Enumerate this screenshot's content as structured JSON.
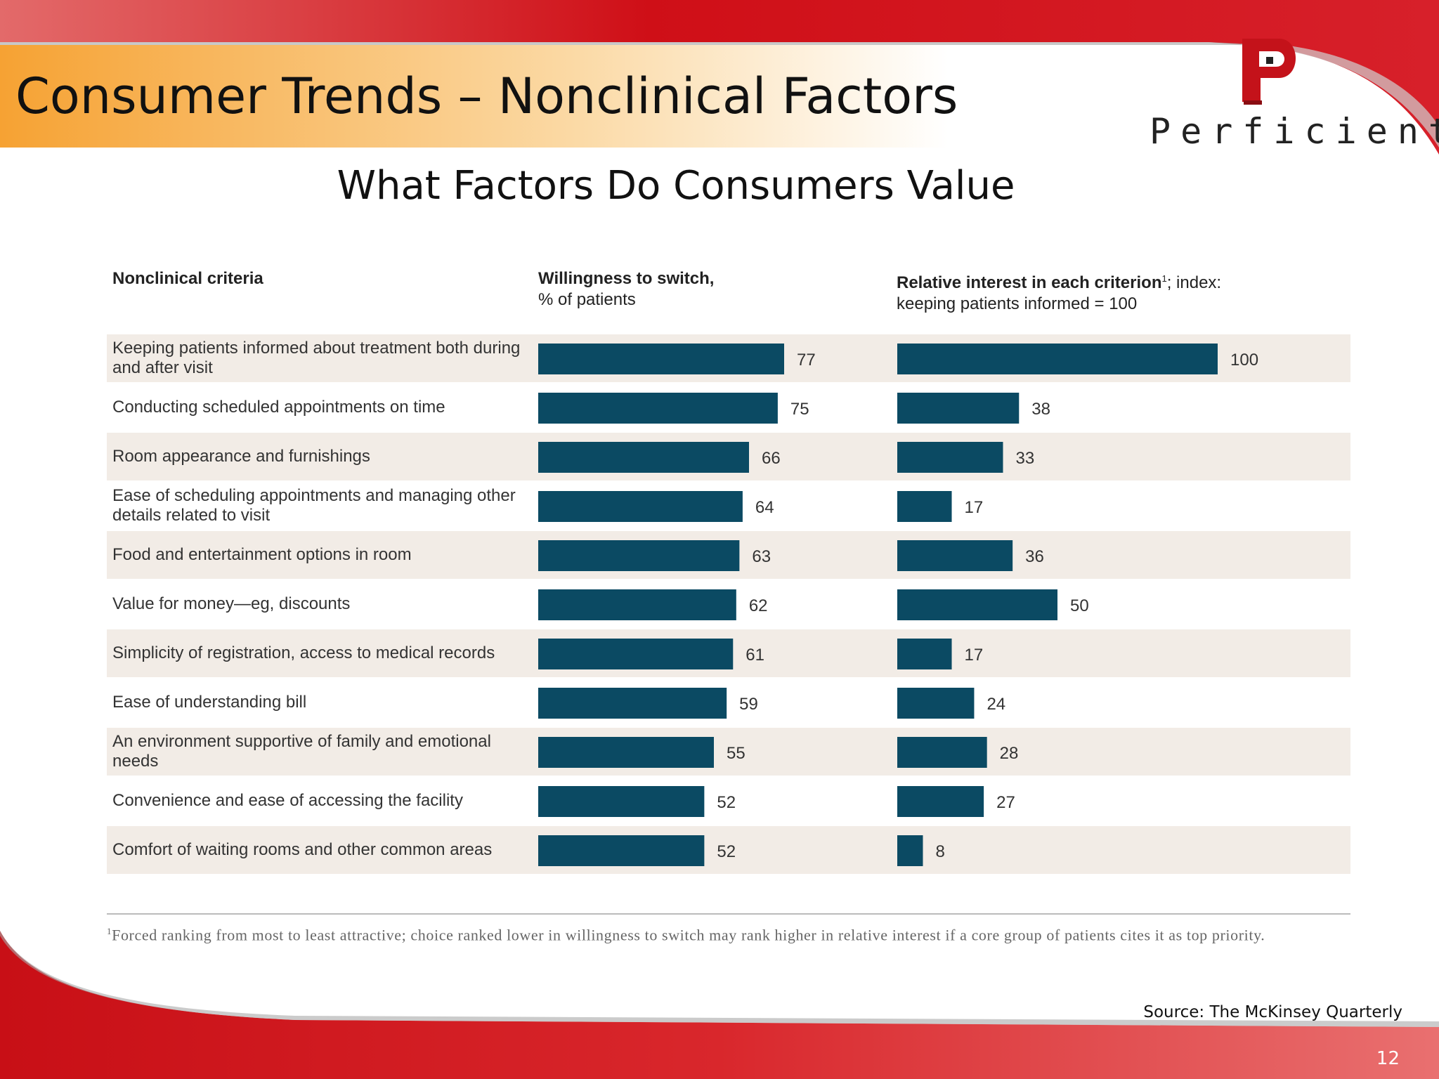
{
  "slide": {
    "title": "Consumer Trends – Nonclinical Factors",
    "subtitle": "What Factors Do Consumers Value",
    "brand": "Perficient",
    "brand_mark": "®",
    "logo_letter": "P",
    "source": "Source: The McKinsey Quarterly",
    "page_number": "12",
    "colors": {
      "banner_red": "#d0101a",
      "banner_orange": "#f7a030",
      "bar": "#0b4a63",
      "band": "#f2ece6"
    }
  },
  "chart_data": {
    "type": "bar",
    "orientation": "horizontal",
    "headers": {
      "criteria": "Nonclinical criteria",
      "switch_bold": "Willingness to switch,",
      "switch_normal": "% of patients",
      "interest_bold": "Relative interest in each criterion",
      "interest_sup": "1",
      "interest_normal_1": "; index:",
      "interest_normal_2": "keeping patients informed = 100"
    },
    "categories": [
      "Keeping patients informed about treatment both during and after visit",
      "Conducting scheduled appointments on time",
      "Room appearance and furnishings",
      "Ease of scheduling appointments and managing other details related to visit",
      "Food and entertainment options in room",
      "Value for money—eg, discounts",
      "Simplicity of registration, access to medical records",
      "Ease of understanding bill",
      "An environment supportive of family and emotional needs",
      "Convenience and ease of accessing the facility",
      "Comfort of waiting rooms and other common areas"
    ],
    "series": [
      {
        "name": "Willingness to switch, % of patients",
        "values": [
          77,
          75,
          66,
          64,
          63,
          62,
          61,
          59,
          55,
          52,
          52
        ]
      },
      {
        "name": "Relative interest in each criterion; index: keeping patients informed = 100",
        "values": [
          100,
          38,
          33,
          17,
          36,
          50,
          17,
          24,
          28,
          27,
          8
        ]
      }
    ],
    "footnote_marker": "1",
    "footnote": "Forced ranking from most to least attractive; choice ranked lower in willingness to switch may rank higher in relative interest if a core group of patients cites it as top priority."
  }
}
